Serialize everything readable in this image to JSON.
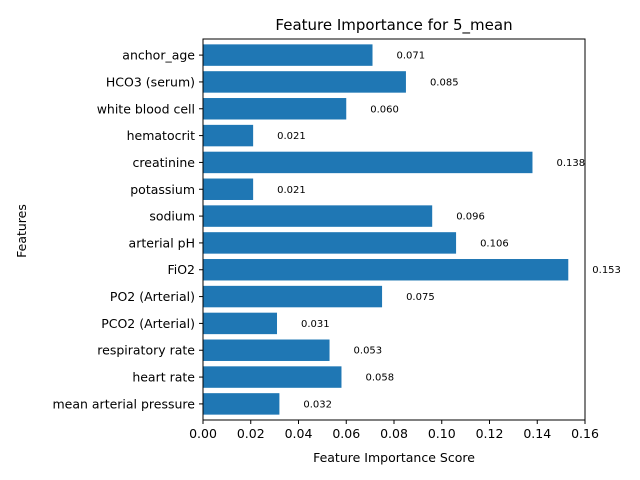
{
  "chart_data": {
    "type": "bar",
    "orientation": "horizontal",
    "title": "Feature Importance for 5_mean",
    "xlabel": "Feature Importance Score",
    "ylabel": "Features",
    "xlim": [
      0,
      0.16
    ],
    "xticks": [
      0.0,
      0.02,
      0.04,
      0.06,
      0.08,
      0.1,
      0.12,
      0.14,
      0.16
    ],
    "xtick_labels": [
      "0.00",
      "0.02",
      "0.04",
      "0.06",
      "0.08",
      "0.10",
      "0.12",
      "0.14",
      "0.16"
    ],
    "grid": false,
    "bar_color": "#1f77b4",
    "categories": [
      "anchor_age",
      "HCO3 (serum)",
      "white blood cell",
      "hematocrit",
      "creatinine",
      "potassium",
      "sodium",
      "arterial pH",
      "FiO2",
      "PO2 (Arterial)",
      "PCO2 (Arterial)",
      "respiratory rate",
      "heart rate",
      "mean arterial pressure"
    ],
    "values": [
      0.071,
      0.085,
      0.06,
      0.021,
      0.138,
      0.021,
      0.096,
      0.106,
      0.153,
      0.075,
      0.031,
      0.053,
      0.058,
      0.032
    ],
    "value_labels": [
      "0.071",
      "0.085",
      "0.060",
      "0.021",
      "0.138",
      "0.021",
      "0.096",
      "0.106",
      "0.153",
      "0.075",
      "0.031",
      "0.053",
      "0.058",
      "0.032"
    ]
  }
}
